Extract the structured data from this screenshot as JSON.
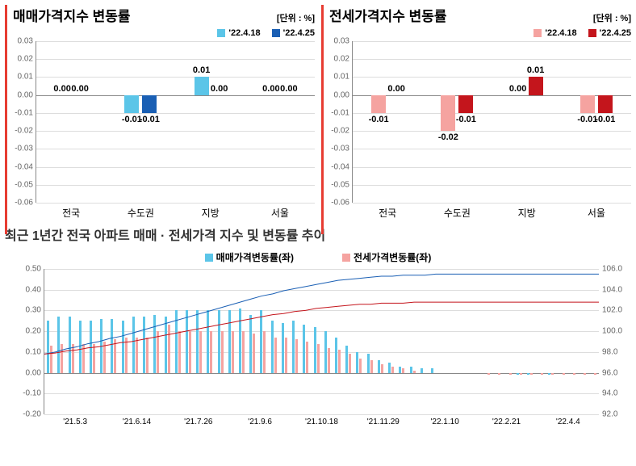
{
  "top_charts": {
    "yticks": [
      0.03,
      0.02,
      0.01,
      0.0,
      -0.01,
      -0.02,
      -0.03,
      -0.04,
      -0.05,
      -0.06
    ],
    "ylim": [
      -0.06,
      0.03
    ],
    "categories": [
      "전국",
      "수도권",
      "지방",
      "서울"
    ],
    "left": {
      "title": "매매가격지수 변동률",
      "unit": "[단위 : %]",
      "legend": [
        {
          "label": "'22.4.18",
          "color": "#5bc5e8"
        },
        {
          "label": "'22.4.25",
          "color": "#1a5fb4"
        }
      ],
      "data": [
        {
          "v1": 0.0,
          "v2": 0.0
        },
        {
          "v1": -0.01,
          "v2": -0.01
        },
        {
          "v1": 0.01,
          "v2": 0.0
        },
        {
          "v1": 0.0,
          "v2": 0.0
        }
      ]
    },
    "right": {
      "title": "전세가격지수 변동률",
      "unit": "[단위 : %]",
      "legend": [
        {
          "label": "'22.4.18",
          "color": "#f5a3a0"
        },
        {
          "label": "'22.4.25",
          "color": "#c4151c"
        }
      ],
      "data": [
        {
          "v1": -0.01,
          "v2": 0.0
        },
        {
          "v1": -0.02,
          "v2": -0.01
        },
        {
          "v1": 0.0,
          "v2": 0.01
        },
        {
          "v1": -0.01,
          "v2": -0.01
        }
      ]
    }
  },
  "bottom_chart": {
    "title": "최근 1년간 전국 아파트 매매 · 전세가격 지수 및 변동률 추이",
    "legend": [
      {
        "label": "매매가격변동률(좌)",
        "color": "#5bc5e8"
      },
      {
        "label": "전세가격변동률(좌)",
        "color": "#f5a3a0"
      }
    ],
    "left_yticks": [
      0.5,
      0.4,
      0.3,
      0.2,
      0.1,
      0.0,
      -0.1,
      -0.2
    ],
    "left_ylim": [
      -0.2,
      0.5
    ],
    "right_yticks": [
      106.0,
      104.0,
      102.0,
      100.0,
      98.0,
      96.0,
      94.0,
      92.0
    ],
    "right_ylim": [
      92.0,
      106.0
    ],
    "xlabels": [
      "'21.5.3",
      "'21.6.14",
      "'21.7.26",
      "'21.9.6",
      "'21.10.18",
      "'21.11.29",
      "'22.1.10",
      "'22.2.21",
      "'22.4.4"
    ],
    "bars_blue": [
      0.25,
      0.27,
      0.27,
      0.25,
      0.25,
      0.26,
      0.26,
      0.25,
      0.27,
      0.27,
      0.28,
      0.27,
      0.3,
      0.3,
      0.3,
      0.3,
      0.3,
      0.3,
      0.31,
      0.28,
      0.3,
      0.25,
      0.24,
      0.25,
      0.23,
      0.22,
      0.2,
      0.17,
      0.13,
      0.1,
      0.09,
      0.06,
      0.05,
      0.03,
      0.03,
      0.02,
      0.02,
      0.0,
      0.0,
      0.0,
      0.0,
      0.0,
      0.0,
      0.0,
      -0.01,
      -0.01,
      0.0,
      -0.01,
      0.0,
      0.0,
      0.0,
      0.0
    ],
    "bars_pink": [
      0.13,
      0.14,
      0.14,
      0.14,
      0.14,
      0.15,
      0.16,
      0.17,
      0.17,
      0.17,
      0.2,
      0.23,
      0.2,
      0.2,
      0.2,
      0.2,
      0.2,
      0.2,
      0.2,
      0.19,
      0.2,
      0.17,
      0.17,
      0.16,
      0.15,
      0.14,
      0.12,
      0.11,
      0.09,
      0.07,
      0.06,
      0.04,
      0.03,
      0.02,
      0.01,
      0.0,
      0.0,
      0.0,
      0.0,
      0.0,
      0.0,
      -0.01,
      -0.01,
      -0.01,
      -0.01,
      -0.01,
      -0.01,
      -0.01,
      -0.01,
      -0.01,
      -0.01,
      -0.01
    ],
    "line_blue_color": "#1a5fb4",
    "line_red_color": "#c4151c",
    "line_blue": [
      97.8,
      98.0,
      98.3,
      98.5,
      98.8,
      99.0,
      99.3,
      99.5,
      99.8,
      100.1,
      100.4,
      100.7,
      101.0,
      101.3,
      101.6,
      101.9,
      102.2,
      102.5,
      102.8,
      103.1,
      103.4,
      103.6,
      103.9,
      104.1,
      104.3,
      104.5,
      104.7,
      104.9,
      105.0,
      105.1,
      105.2,
      105.3,
      105.3,
      105.4,
      105.4,
      105.4,
      105.5,
      105.5,
      105.5,
      105.5,
      105.5,
      105.5,
      105.5,
      105.5,
      105.5,
      105.5,
      105.5,
      105.5,
      105.5,
      105.5,
      105.5,
      105.5
    ],
    "line_red": [
      97.8,
      97.9,
      98.1,
      98.2,
      98.4,
      98.5,
      98.7,
      98.9,
      99.0,
      99.2,
      99.4,
      99.6,
      99.8,
      100.0,
      100.2,
      100.4,
      100.6,
      100.8,
      101.0,
      101.2,
      101.4,
      101.6,
      101.7,
      101.9,
      102.0,
      102.2,
      102.3,
      102.4,
      102.5,
      102.6,
      102.6,
      102.7,
      102.7,
      102.7,
      102.8,
      102.8,
      102.8,
      102.8,
      102.8,
      102.8,
      102.8,
      102.8,
      102.8,
      102.8,
      102.8,
      102.8,
      102.8,
      102.8,
      102.8,
      102.8,
      102.8,
      102.8
    ]
  }
}
